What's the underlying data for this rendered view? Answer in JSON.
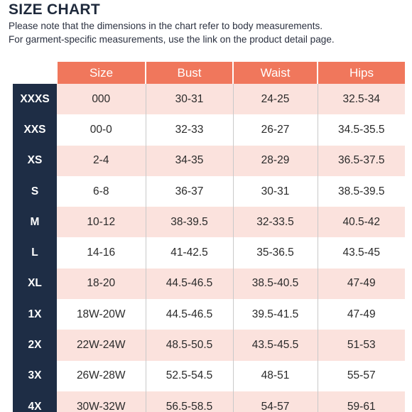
{
  "header": {
    "title": "SIZE CHART",
    "note_line1": "Please note that the dimensions in the chart refer to body measurements.",
    "note_line2": "For garment-specific measurements, use the link on the product detail page."
  },
  "colors": {
    "header_bg": "#f0775c",
    "rowlabel_bg": "#1e2d45",
    "stripe_bg": "#fbe2dd"
  },
  "table": {
    "columns": [
      "Size",
      "Bust",
      "Waist",
      "Hips"
    ],
    "rows": [
      {
        "label": "XXXS",
        "size": "000",
        "bust": "30-31",
        "waist": "24-25",
        "hips": "32.5-34"
      },
      {
        "label": "XXS",
        "size": "00-0",
        "bust": "32-33",
        "waist": "26-27",
        "hips": "34.5-35.5"
      },
      {
        "label": "XS",
        "size": "2-4",
        "bust": "34-35",
        "waist": "28-29",
        "hips": "36.5-37.5"
      },
      {
        "label": "S",
        "size": "6-8",
        "bust": "36-37",
        "waist": "30-31",
        "hips": "38.5-39.5"
      },
      {
        "label": "M",
        "size": "10-12",
        "bust": "38-39.5",
        "waist": "32-33.5",
        "hips": "40.5-42"
      },
      {
        "label": "L",
        "size": "14-16",
        "bust": "41-42.5",
        "waist": "35-36.5",
        "hips": "43.5-45"
      },
      {
        "label": "XL",
        "size": "18-20",
        "bust": "44.5-46.5",
        "waist": "38.5-40.5",
        "hips": "47-49"
      },
      {
        "label": "1X",
        "size": "18W-20W",
        "bust": "44.5-46.5",
        "waist": "39.5-41.5",
        "hips": "47-49"
      },
      {
        "label": "2X",
        "size": "22W-24W",
        "bust": "48.5-50.5",
        "waist": "43.5-45.5",
        "hips": "51-53"
      },
      {
        "label": "3X",
        "size": "26W-28W",
        "bust": "52.5-54.5",
        "waist": "48-51",
        "hips": "55-57"
      },
      {
        "label": "4X",
        "size": "30W-32W",
        "bust": "56.5-58.5",
        "waist": "54-57",
        "hips": "59-61"
      }
    ]
  }
}
